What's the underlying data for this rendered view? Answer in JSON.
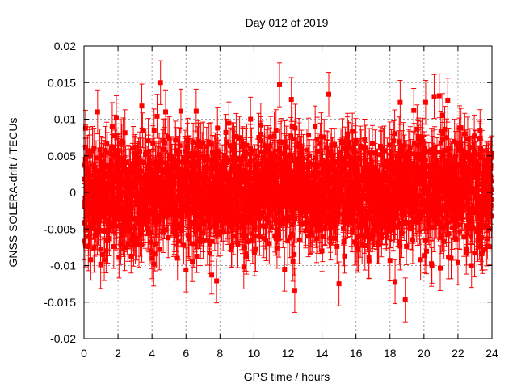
{
  "chart_data": {
    "type": "scatter",
    "title": "Day 012 of 2019",
    "xlabel": "GPS time / hours",
    "ylabel": "GNSS SOLERA-drift / TECUs",
    "xlim": [
      0,
      24
    ],
    "ylim": [
      -0.02,
      0.02
    ],
    "x_ticks": [
      0,
      2,
      4,
      6,
      8,
      10,
      12,
      14,
      16,
      18,
      20,
      22,
      24
    ],
    "x_tick_labels": [
      "0",
      "2",
      "4",
      "6",
      "8",
      "10",
      "12",
      "14",
      "16",
      "18",
      "20",
      "22",
      "24"
    ],
    "y_ticks": [
      -0.02,
      -0.015,
      -0.01,
      -0.005,
      0,
      0.005,
      0.01,
      0.015,
      0.02
    ],
    "y_tick_labels": [
      "-0.02",
      "-0.015",
      "-0.01",
      "-0.005",
      "0",
      "0.005",
      "0.01",
      "0.015",
      "0.02"
    ],
    "grid": true,
    "series_color": "#ff0000",
    "error_bars": true,
    "points": [
      {
        "x": 0.1,
        "y": 0.0062,
        "err": 0.003
      },
      {
        "x": 0.4,
        "y": -0.0092,
        "err": 0.0028
      },
      {
        "x": 0.8,
        "y": 0.011,
        "err": 0.003
      },
      {
        "x": 1.3,
        "y": -0.008,
        "err": 0.003
      },
      {
        "x": 1.9,
        "y": 0.0102,
        "err": 0.003
      },
      {
        "x": 2.6,
        "y": -0.0042,
        "err": 0.0025
      },
      {
        "x": 3.0,
        "y": 0.0052,
        "err": 0.0025
      },
      {
        "x": 3.4,
        "y": 0.0118,
        "err": 0.003
      },
      {
        "x": 3.9,
        "y": -0.0068,
        "err": 0.003
      },
      {
        "x": 4.0,
        "y": -0.009,
        "err": 0.0028
      },
      {
        "x": 4.1,
        "y": -0.0098,
        "err": 0.003
      },
      {
        "x": 4.3,
        "y": 0.0104,
        "err": 0.003
      },
      {
        "x": 4.5,
        "y": 0.015,
        "err": 0.003
      },
      {
        "x": 4.8,
        "y": 0.011,
        "err": 0.003
      },
      {
        "x": 5.5,
        "y": -0.009,
        "err": 0.003
      },
      {
        "x": 5.7,
        "y": 0.0111,
        "err": 0.003
      },
      {
        "x": 6.0,
        "y": -0.0106,
        "err": 0.003
      },
      {
        "x": 6.6,
        "y": 0.0111,
        "err": 0.003
      },
      {
        "x": 7.0,
        "y": 0.0068,
        "err": 0.0028
      },
      {
        "x": 7.4,
        "y": -0.0083,
        "err": 0.0028
      },
      {
        "x": 7.8,
        "y": -0.0121,
        "err": 0.003
      },
      {
        "x": 8.3,
        "y": 0.004,
        "err": 0.0025
      },
      {
        "x": 8.8,
        "y": -0.006,
        "err": 0.0025
      },
      {
        "x": 9.4,
        "y": -0.0102,
        "err": 0.003
      },
      {
        "x": 9.8,
        "y": 0.01,
        "err": 0.003
      },
      {
        "x": 10.4,
        "y": 0.0092,
        "err": 0.003
      },
      {
        "x": 10.9,
        "y": -0.007,
        "err": 0.0028
      },
      {
        "x": 11.3,
        "y": 0.0085,
        "err": 0.0028
      },
      {
        "x": 11.5,
        "y": 0.0147,
        "err": 0.003
      },
      {
        "x": 11.8,
        "y": -0.0105,
        "err": 0.003
      },
      {
        "x": 12.2,
        "y": 0.0127,
        "err": 0.003
      },
      {
        "x": 12.4,
        "y": -0.0134,
        "err": 0.003
      },
      {
        "x": 12.8,
        "y": 0.006,
        "err": 0.0025
      },
      {
        "x": 13.2,
        "y": -0.006,
        "err": 0.0028
      },
      {
        "x": 13.6,
        "y": 0.009,
        "err": 0.0028
      },
      {
        "x": 14.0,
        "y": -0.008,
        "err": 0.0028
      },
      {
        "x": 14.4,
        "y": 0.0134,
        "err": 0.003
      },
      {
        "x": 15.0,
        "y": -0.0125,
        "err": 0.003
      },
      {
        "x": 15.5,
        "y": 0.008,
        "err": 0.0028
      },
      {
        "x": 16.0,
        "y": -0.007,
        "err": 0.0028
      },
      {
        "x": 16.5,
        "y": 0.0072,
        "err": 0.0028
      },
      {
        "x": 17.0,
        "y": -0.0052,
        "err": 0.0025
      },
      {
        "x": 17.5,
        "y": 0.006,
        "err": 0.0025
      },
      {
        "x": 18.0,
        "y": -0.0093,
        "err": 0.0028
      },
      {
        "x": 18.3,
        "y": -0.0122,
        "err": 0.003
      },
      {
        "x": 18.6,
        "y": 0.0123,
        "err": 0.003
      },
      {
        "x": 18.9,
        "y": -0.0147,
        "err": 0.003
      },
      {
        "x": 19.4,
        "y": 0.0112,
        "err": 0.003
      },
      {
        "x": 19.8,
        "y": -0.0092,
        "err": 0.0028
      },
      {
        "x": 20.1,
        "y": 0.0123,
        "err": 0.003
      },
      {
        "x": 20.6,
        "y": 0.0131,
        "err": 0.003
      },
      {
        "x": 20.9,
        "y": 0.0132,
        "err": 0.003
      },
      {
        "x": 21.1,
        "y": 0.0105,
        "err": 0.003
      },
      {
        "x": 21.4,
        "y": 0.0126,
        "err": 0.003
      },
      {
        "x": 21.6,
        "y": -0.009,
        "err": 0.0028
      },
      {
        "x": 22.0,
        "y": -0.0096,
        "err": 0.003
      },
      {
        "x": 22.4,
        "y": 0.008,
        "err": 0.0028
      },
      {
        "x": 22.8,
        "y": -0.01,
        "err": 0.003
      },
      {
        "x": 23.3,
        "y": 0.0085,
        "err": 0.0028
      },
      {
        "x": 23.6,
        "y": -0.0078,
        "err": 0.0028
      },
      {
        "x": 23.9,
        "y": 0.005,
        "err": 0.0025
      }
    ]
  }
}
